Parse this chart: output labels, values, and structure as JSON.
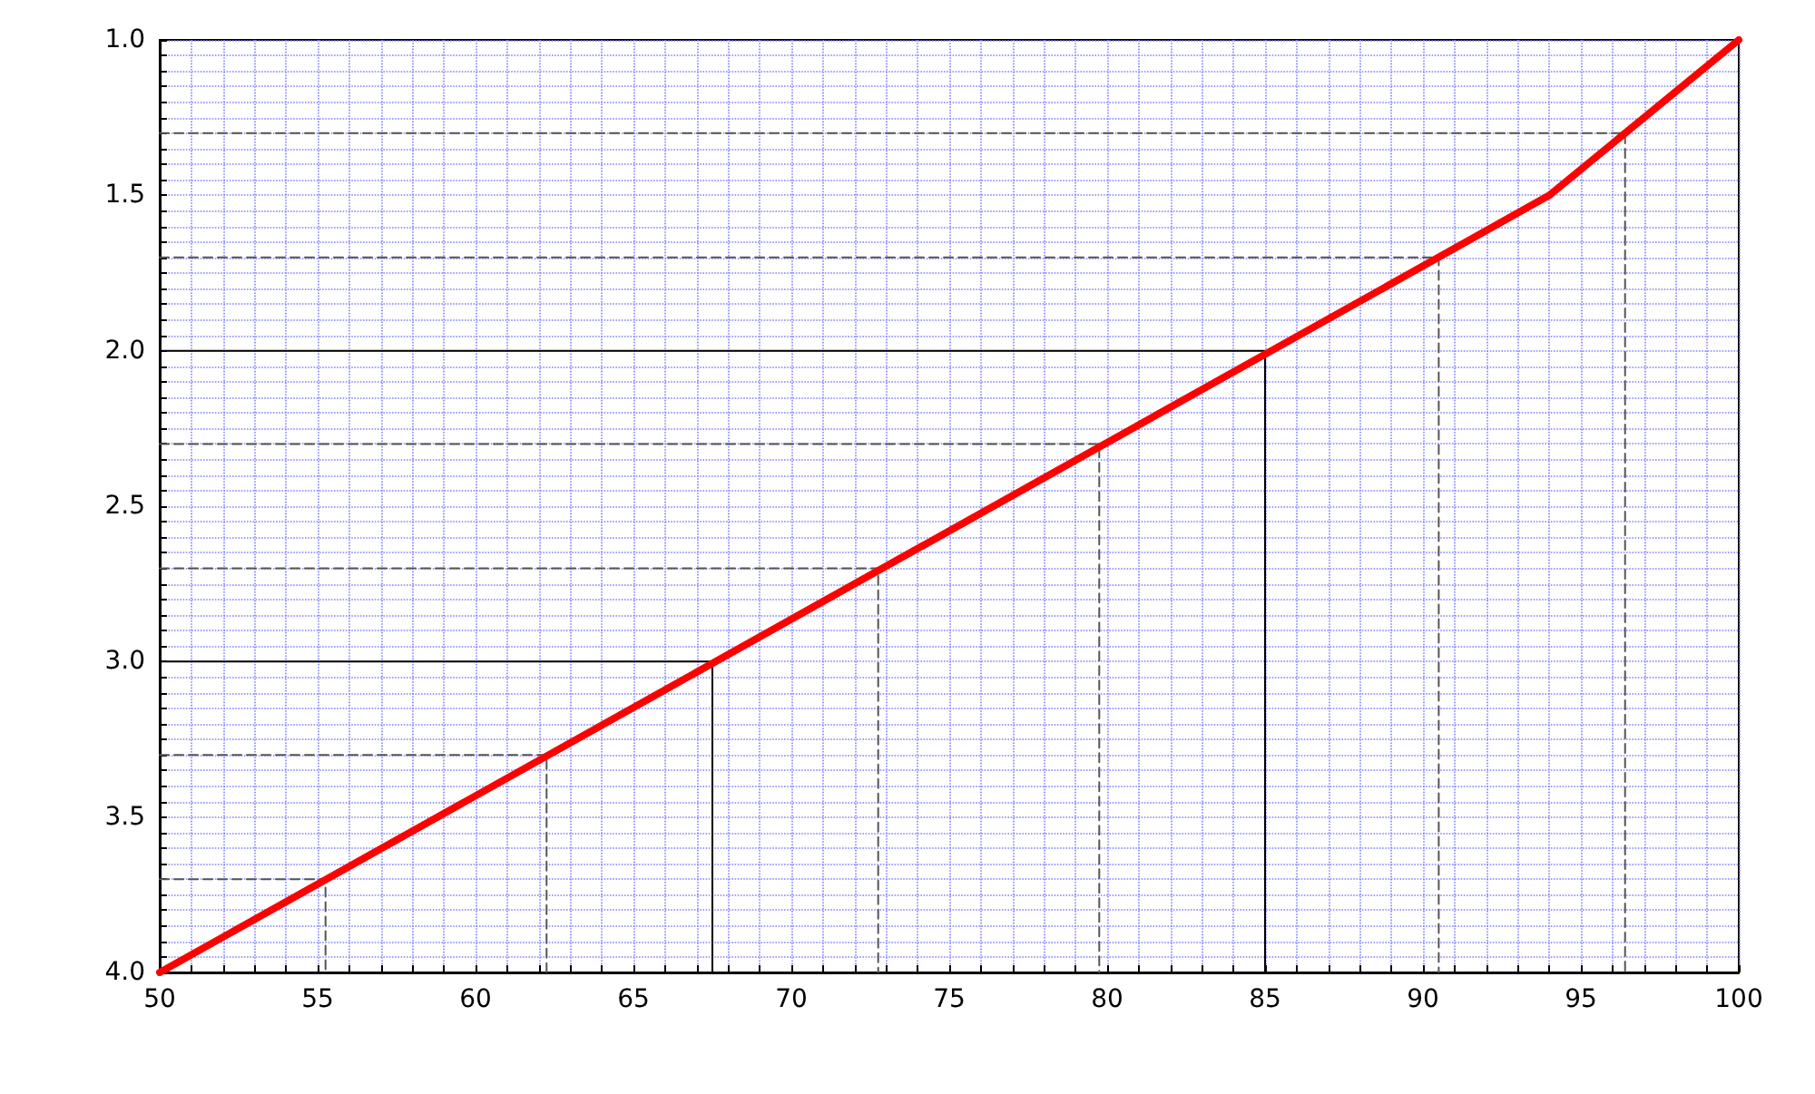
{
  "chart_data": {
    "type": "line",
    "marker": "none",
    "grid": true,
    "xlim": [
      50,
      100
    ],
    "xticks": [
      50,
      {
        "value": 51,
        "label": null
      },
      {
        "value": 52,
        "label": null
      },
      {
        "value": 53,
        "label": null
      },
      {
        "value": 54,
        "label": null
      },
      55,
      {
        "value": 56,
        "label": null
      },
      {
        "value": 57,
        "label": null
      },
      {
        "value": 58,
        "label": null
      },
      {
        "value": 59,
        "label": null
      },
      60,
      {
        "value": 61,
        "label": null
      },
      {
        "value": 62,
        "label": null
      },
      {
        "value": 63,
        "label": null
      },
      {
        "value": 64,
        "label": null
      },
      65,
      {
        "value": 66,
        "label": null
      },
      {
        "value": 67,
        "label": null
      },
      {
        "value": 68,
        "label": null
      },
      {
        "value": 69,
        "label": null
      },
      70,
      {
        "value": 71,
        "label": null
      },
      {
        "value": 72,
        "label": null
      },
      {
        "value": 73,
        "label": null
      },
      {
        "value": 74,
        "label": null
      },
      75,
      {
        "value": 76,
        "label": null
      },
      {
        "value": 77,
        "label": null
      },
      {
        "value": 78,
        "label": null
      },
      {
        "value": 79,
        "label": null
      },
      80,
      {
        "value": 81,
        "label": null
      },
      {
        "value": 82,
        "label": null
      },
      {
        "value": 83,
        "label": null
      },
      {
        "value": 84,
        "label": null
      },
      85,
      {
        "value": 86,
        "label": null
      },
      {
        "value": 87,
        "label": null
      },
      {
        "value": 88,
        "label": null
      },
      {
        "value": 89,
        "label": null
      },
      90,
      {
        "value": 91,
        "label": null
      },
      {
        "value": 92,
        "label": null
      },
      {
        "value": 93,
        "label": null
      },
      {
        "value": 94,
        "label": null
      },
      95,
      {
        "value": 96,
        "label": null
      },
      {
        "value": 97,
        "label": null
      },
      {
        "value": 98,
        "label": null
      },
      {
        "value": 99,
        "label": null
      },
      100
    ],
    "ylim": [
      4,
      1
    ],
    "yticks": [
      {
        "value": 1,
        "label": "1.0"
      },
      {
        "value": 1.05,
        "label": null
      },
      {
        "value": 1.1,
        "label": null
      },
      {
        "value": 1.15,
        "label": null
      },
      {
        "value": 1.2,
        "label": null
      },
      {
        "value": 1.25,
        "label": null
      },
      {
        "value": 1.3,
        "label": null
      },
      {
        "value": 1.35,
        "label": null
      },
      {
        "value": 1.4,
        "label": null
      },
      {
        "value": 1.45,
        "label": null
      },
      {
        "value": 1.5,
        "label": "1.5"
      },
      {
        "value": 1.55,
        "label": null
      },
      {
        "value": 1.6,
        "label": null
      },
      {
        "value": 1.65,
        "label": null
      },
      {
        "value": 1.7,
        "label": null
      },
      {
        "value": 1.75,
        "label": null
      },
      {
        "value": 1.8,
        "label": null
      },
      {
        "value": 1.85,
        "label": null
      },
      {
        "value": 1.9,
        "label": null
      },
      {
        "value": 1.95,
        "label": null
      },
      {
        "value": 2,
        "label": "2.0"
      },
      {
        "value": 2.05,
        "label": null
      },
      {
        "value": 2.1,
        "label": null
      },
      {
        "value": 2.15,
        "label": null
      },
      {
        "value": 2.2,
        "label": null
      },
      {
        "value": 2.25,
        "label": null
      },
      {
        "value": 2.3,
        "label": null
      },
      {
        "value": 2.35,
        "label": null
      },
      {
        "value": 2.4,
        "label": null
      },
      {
        "value": 2.45,
        "label": null
      },
      {
        "value": 2.5,
        "label": "2.5"
      },
      {
        "value": 2.55,
        "label": null
      },
      {
        "value": 2.6,
        "label": null
      },
      {
        "value": 2.65,
        "label": null
      },
      {
        "value": 2.7,
        "label": null
      },
      {
        "value": 2.75,
        "label": null
      },
      {
        "value": 2.8,
        "label": null
      },
      {
        "value": 2.85,
        "label": null
      },
      {
        "value": 2.9,
        "label": null
      },
      {
        "value": 2.95,
        "label": null
      },
      {
        "value": 3,
        "label": "3.0"
      },
      {
        "value": 3.05,
        "label": null
      },
      {
        "value": 3.1,
        "label": null
      },
      {
        "value": 3.15,
        "label": null
      },
      {
        "value": 3.2,
        "label": null
      },
      {
        "value": 3.25,
        "label": null
      },
      {
        "value": 3.3,
        "label": null
      },
      {
        "value": 3.35,
        "label": null
      },
      {
        "value": 3.4,
        "label": null
      },
      {
        "value": 3.45,
        "label": null
      },
      {
        "value": 3.5,
        "label": "3.5"
      },
      {
        "value": 3.55,
        "label": null
      },
      {
        "value": 3.6,
        "label": null
      },
      {
        "value": 3.65,
        "label": null
      },
      {
        "value": 3.7,
        "label": null
      },
      {
        "value": 3.75,
        "label": null
      },
      {
        "value": 3.8,
        "label": null
      },
      {
        "value": 3.85,
        "label": null
      },
      {
        "value": 3.9,
        "label": null
      },
      {
        "value": 3.95,
        "label": null
      },
      {
        "value": 4,
        "label": "4.0"
      }
    ],
    "series": [
      {
        "color": "#ff0000",
        "x": [
          50,
          94,
          100
        ],
        "values": [
          4,
          1.5,
          1
        ]
      },
      {
        "color": "#000000",
        "line_style": "solid",
        "x": [
          50,
          67.5,
          67.5
        ],
        "values": [
          3,
          3,
          4
        ]
      },
      {
        "color": "#000000",
        "line_style": "solid",
        "x": [
          50,
          85,
          85
        ],
        "values": [
          2,
          2,
          4
        ]
      },
      {
        "color": "#555555",
        "line_style": "dashed",
        "x": [
          50,
          55.25,
          55.25
        ],
        "values": [
          3.7,
          3.7,
          4
        ]
      },
      {
        "color": "#555555",
        "line_style": "dashed",
        "x": [
          50,
          62.25,
          62.25
        ],
        "values": [
          3.3,
          3.3,
          4
        ]
      },
      {
        "color": "#555555",
        "line_style": "dashed",
        "x": [
          50,
          72.75,
          72.75
        ],
        "values": [
          2.7,
          2.7,
          4
        ]
      },
      {
        "color": "#555555",
        "line_style": "dashed",
        "x": [
          50,
          79.75,
          79.75
        ],
        "values": [
          2.3,
          2.3,
          4
        ]
      },
      {
        "color": "#555555",
        "line_style": "dashed",
        "x": [
          50,
          90.5,
          90.5
        ],
        "values": [
          1.7,
          1.7,
          4
        ]
      },
      {
        "color": "#555555",
        "line_style": "dashed",
        "x": [
          50,
          96.4,
          96.4
        ],
        "values": [
          1.3,
          1.3,
          4
        ]
      }
    ]
  }
}
